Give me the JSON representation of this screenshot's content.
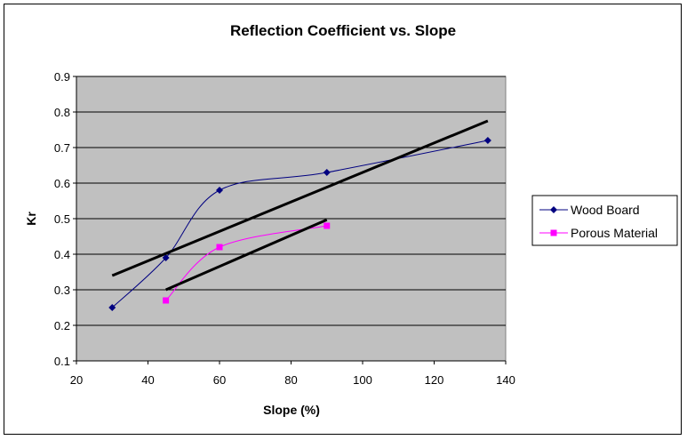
{
  "chart_data": {
    "type": "scatter",
    "title": "Reflection Coefficient vs. Slope",
    "xlabel": "Slope (%)",
    "ylabel": "Kr",
    "xlim": [
      20,
      140
    ],
    "ylim": [
      0.1,
      0.9
    ],
    "x_ticks": [
      "20",
      "40",
      "60",
      "80",
      "100",
      "120",
      "140"
    ],
    "y_ticks": [
      "0.1",
      "0.2",
      "0.3",
      "0.4",
      "0.5",
      "0.6",
      "0.7",
      "0.8",
      "0.9"
    ],
    "grid": true,
    "legend_position": "right",
    "series": [
      {
        "name": "Wood Board",
        "color": "#000080",
        "marker": "diamond",
        "smooth": true,
        "x": [
          30,
          45,
          60,
          90,
          135
        ],
        "y": [
          0.25,
          0.39,
          0.58,
          0.63,
          0.72
        ]
      },
      {
        "name": "Porous Material",
        "color": "#ff00ff",
        "marker": "square",
        "smooth": true,
        "x": [
          45,
          60,
          90
        ],
        "y": [
          0.27,
          0.42,
          0.48
        ]
      }
    ],
    "trendlines": [
      {
        "series": "Wood Board",
        "color": "#000000",
        "x": [
          30,
          135
        ],
        "y": [
          0.34,
          0.775
        ]
      },
      {
        "series": "Porous Material",
        "color": "#000000",
        "x": [
          45,
          90
        ],
        "y": [
          0.3,
          0.497
        ]
      }
    ],
    "plot_background": "#c0c0c0"
  }
}
